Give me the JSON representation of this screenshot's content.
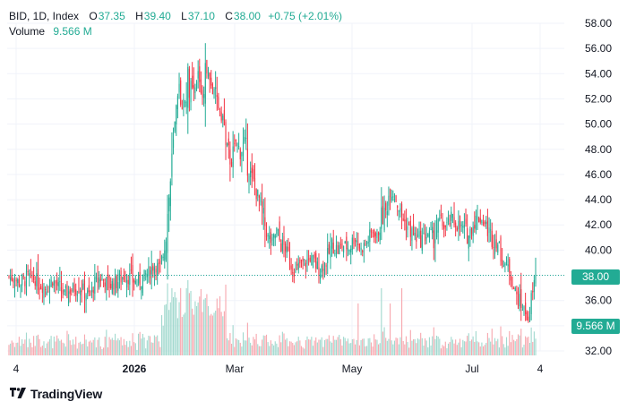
{
  "header": {
    "symbol": "BID, 1D, Index",
    "open_label": "O",
    "open": "37.35",
    "high_label": "H",
    "high": "39.40",
    "low_label": "L",
    "low": "37.10",
    "close_label": "C",
    "close": "38.00",
    "change": "+0.75 (+2.01%)",
    "volume_label": "Volume",
    "volume": "9.566 M"
  },
  "price_tag": "38.00",
  "volume_tag": "9.566 M",
  "brand": "TradingView",
  "colors": {
    "up": "#22ab94",
    "down": "#f23645",
    "up_vol": "#a3d9cf",
    "down_vol": "#f7a9b0",
    "grid": "#f0f3fa",
    "text": "#131722"
  },
  "chart_data": {
    "type": "candlestick",
    "y_ticks": [
      "58.00",
      "56.00",
      "54.00",
      "52.00",
      "50.00",
      "48.00",
      "46.00",
      "44.00",
      "42.00",
      "40.00",
      "38.00",
      "36.00",
      "34.00",
      "32.00"
    ],
    "ylim": [
      32,
      58
    ],
    "x_ticks": [
      "4",
      "2026",
      "Mar",
      "May",
      "Jul",
      "4"
    ],
    "last_close": 38.0,
    "close_anchors": [
      [
        0,
        37.9
      ],
      [
        8,
        37.4
      ],
      [
        15,
        37.9
      ],
      [
        25,
        37.0
      ],
      [
        30,
        37.6
      ],
      [
        38,
        36.5
      ],
      [
        48,
        37.2
      ],
      [
        55,
        36.4
      ],
      [
        62,
        37.8
      ],
      [
        70,
        37.2
      ],
      [
        80,
        38.0
      ],
      [
        88,
        37.4
      ],
      [
        95,
        38.1
      ],
      [
        100,
        38.8
      ],
      [
        104,
        38.4
      ],
      [
        108,
        41.5
      ],
      [
        111,
        45.5
      ],
      [
        114,
        49.8
      ],
      [
        117,
        52.7
      ],
      [
        120,
        51.5
      ],
      [
        123,
        53.5
      ],
      [
        127,
        52.0
      ],
      [
        130,
        53.9
      ],
      [
        133,
        52.2
      ],
      [
        136,
        54.6
      ],
      [
        139,
        53.0
      ],
      [
        143,
        51.8
      ],
      [
        147,
        50.5
      ],
      [
        150,
        48.0
      ],
      [
        153,
        47.0
      ],
      [
        156,
        48.6
      ],
      [
        159,
        47.8
      ],
      [
        162,
        48.6
      ],
      [
        165,
        46.5
      ],
      [
        168,
        45.2
      ],
      [
        172,
        44.0
      ],
      [
        175,
        42.5
      ],
      [
        178,
        41.0
      ],
      [
        181,
        40.6
      ],
      [
        184,
        41.5
      ],
      [
        187,
        40.4
      ],
      [
        190,
        40.2
      ],
      [
        194,
        38.8
      ],
      [
        197,
        38.3
      ],
      [
        200,
        38.9
      ],
      [
        204,
        39.0
      ],
      [
        207,
        39.4
      ],
      [
        210,
        38.9
      ],
      [
        214,
        38.5
      ],
      [
        218,
        39.0
      ],
      [
        222,
        40.5
      ],
      [
        226,
        40.0
      ],
      [
        230,
        40.4
      ],
      [
        234,
        40.2
      ],
      [
        238,
        41.1
      ],
      [
        242,
        40.0
      ],
      [
        246,
        40.6
      ],
      [
        250,
        41.5
      ],
      [
        253,
        41.0
      ],
      [
        256,
        42.5
      ],
      [
        259,
        43.0
      ],
      [
        262,
        45.0
      ],
      [
        265,
        44.3
      ],
      [
        268,
        43.3
      ],
      [
        272,
        42.2
      ],
      [
        276,
        41.5
      ],
      [
        280,
        41.0
      ],
      [
        284,
        40.9
      ],
      [
        288,
        41.3
      ],
      [
        292,
        41.0
      ],
      [
        296,
        42.3
      ],
      [
        300,
        41.8
      ],
      [
        304,
        42.4
      ],
      [
        308,
        42.0
      ],
      [
        312,
        41.7
      ],
      [
        316,
        41.2
      ],
      [
        320,
        42.3
      ],
      [
        324,
        42.6
      ],
      [
        328,
        41.9
      ],
      [
        332,
        41.0
      ],
      [
        336,
        40.5
      ],
      [
        340,
        39.0
      ],
      [
        344,
        38.5
      ],
      [
        347,
        37.0
      ],
      [
        350,
        36.0
      ],
      [
        353,
        35.5
      ],
      [
        356,
        34.8
      ],
      [
        358,
        34.5
      ],
      [
        359,
        36.0
      ],
      [
        361,
        37.2
      ],
      [
        362,
        38.0
      ]
    ],
    "volume_peaks_M": [
      4,
      6,
      9,
      22,
      26,
      20,
      15,
      11,
      9,
      7
    ]
  }
}
